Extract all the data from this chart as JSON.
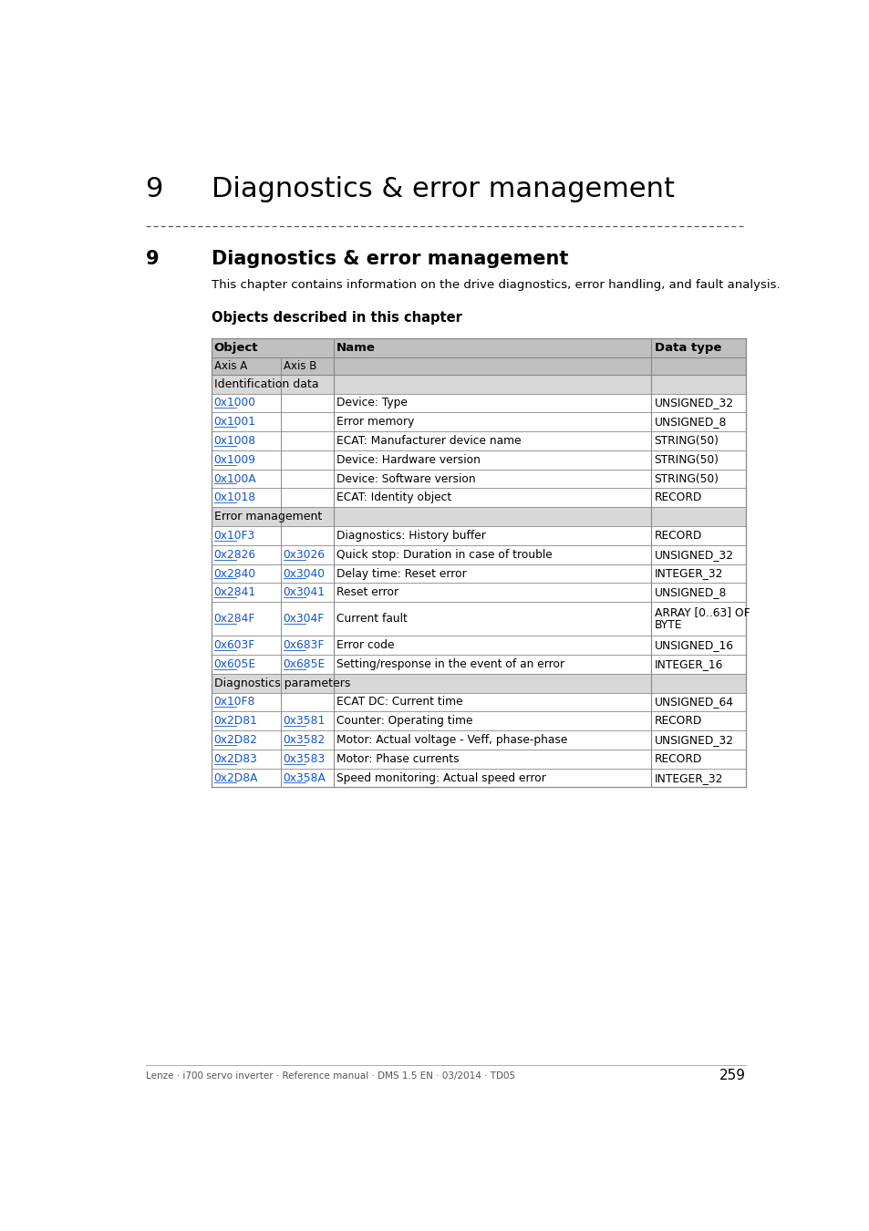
{
  "page_title_number": "9",
  "page_title_text": "Diagnostics & error management",
  "section_number": "9",
  "section_title": "Diagnostics & error management",
  "intro_text": "This chapter contains information on the drive diagnostics, error handling, and fault analysis.",
  "table_heading": "Objects described in this chapter",
  "col_headers": [
    "Object",
    "Name",
    "Data type"
  ],
  "sub_headers": [
    "Axis A",
    "Axis B"
  ],
  "header_bg": "#c0c0c0",
  "section_row_bg": "#d8d8d8",
  "white_row_bg": "#ffffff",
  "link_color": "#1155cc",
  "text_color": "#000000",
  "footer_text": "Lenze · i700 servo inverter · Reference manual · DMS 1.5 EN · 03/2014 · TD05",
  "page_number": "259",
  "table_rows": [
    {
      "type": "section",
      "col1": "Identification data",
      "col2": "",
      "col3": "",
      "col4": ""
    },
    {
      "type": "data",
      "col1": "0x1000",
      "col2": "",
      "col3": "Device: Type",
      "col4": "UNSIGNED_32",
      "link1": true,
      "link2": false
    },
    {
      "type": "data",
      "col1": "0x1001",
      "col2": "",
      "col3": "Error memory",
      "col4": "UNSIGNED_8",
      "link1": true,
      "link2": false
    },
    {
      "type": "data",
      "col1": "0x1008",
      "col2": "",
      "col3": "ECAT: Manufacturer device name",
      "col4": "STRING(50)",
      "link1": true,
      "link2": false
    },
    {
      "type": "data",
      "col1": "0x1009",
      "col2": "",
      "col3": "Device: Hardware version",
      "col4": "STRING(50)",
      "link1": true,
      "link2": false
    },
    {
      "type": "data",
      "col1": "0x100A",
      "col2": "",
      "col3": "Device: Software version",
      "col4": "STRING(50)",
      "link1": true,
      "link2": false
    },
    {
      "type": "data",
      "col1": "0x1018",
      "col2": "",
      "col3": "ECAT: Identity object",
      "col4": "RECORD",
      "link1": true,
      "link2": false
    },
    {
      "type": "section",
      "col1": "Error management",
      "col2": "",
      "col3": "",
      "col4": ""
    },
    {
      "type": "data",
      "col1": "0x10F3",
      "col2": "",
      "col3": "Diagnostics: History buffer",
      "col4": "RECORD",
      "link1": true,
      "link2": false
    },
    {
      "type": "data",
      "col1": "0x2826",
      "col2": "0x3026",
      "col3": "Quick stop: Duration in case of trouble",
      "col4": "UNSIGNED_32",
      "link1": true,
      "link2": true
    },
    {
      "type": "data",
      "col1": "0x2840",
      "col2": "0x3040",
      "col3": "Delay time: Reset error",
      "col4": "INTEGER_32",
      "link1": true,
      "link2": true
    },
    {
      "type": "data",
      "col1": "0x2841",
      "col2": "0x3041",
      "col3": "Reset error",
      "col4": "UNSIGNED_8",
      "link1": true,
      "link2": true
    },
    {
      "type": "data_tall",
      "col1": "0x284F",
      "col2": "0x304F",
      "col3": "Current fault",
      "col4_line1": "ARRAY [0..63] OF",
      "col4_line2": "BYTE",
      "link1": true,
      "link2": true
    },
    {
      "type": "data",
      "col1": "0x603F",
      "col2": "0x683F",
      "col3": "Error code",
      "col4": "UNSIGNED_16",
      "link1": true,
      "link2": true
    },
    {
      "type": "data",
      "col1": "0x605E",
      "col2": "0x685E",
      "col3": "Setting/response in the event of an error",
      "col4": "INTEGER_16",
      "link1": true,
      "link2": true
    },
    {
      "type": "section",
      "col1": "Diagnostics parameters",
      "col2": "",
      "col3": "",
      "col4": ""
    },
    {
      "type": "data",
      "col1": "0x10F8",
      "col2": "",
      "col3": "ECAT DC: Current time",
      "col4": "UNSIGNED_64",
      "link1": true,
      "link2": false
    },
    {
      "type": "data",
      "col1": "0x2D81",
      "col2": "0x3581",
      "col3": "Counter: Operating time",
      "col4": "RECORD",
      "link1": true,
      "link2": true
    },
    {
      "type": "data",
      "col1": "0x2D82",
      "col2": "0x3582",
      "col3": "Motor: Actual voltage - Veff, phase-phase",
      "col4": "UNSIGNED_32",
      "link1": true,
      "link2": true
    },
    {
      "type": "data",
      "col1": "0x2D83",
      "col2": "0x3583",
      "col3": "Motor: Phase currents",
      "col4": "RECORD",
      "link1": true,
      "link2": true
    },
    {
      "type": "data",
      "col1": "0x2D8A",
      "col2": "0x358A",
      "col3": "Speed monitoring: Actual speed error",
      "col4": "INTEGER_32",
      "link1": true,
      "link2": true
    }
  ]
}
